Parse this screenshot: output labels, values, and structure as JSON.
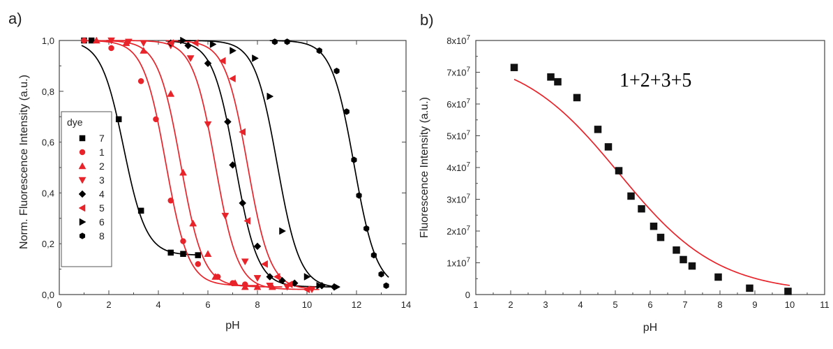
{
  "chart_data": [
    {
      "type": "scatter",
      "panel_label": "a)",
      "xlabel": "pH",
      "ylabel": "Norm. Fluorescence Intensity (a.u.)",
      "xlim": [
        0,
        14
      ],
      "ylim": [
        0,
        1.0
      ],
      "xticks": [
        "0",
        "2",
        "4",
        "6",
        "8",
        "10",
        "12",
        "14"
      ],
      "yticks": [
        "0,0",
        "0,2",
        "0,4",
        "0,6",
        "0,8",
        "1,0"
      ],
      "grid": false,
      "legend": {
        "title": "dye",
        "placement": "left-middle"
      },
      "series": [
        {
          "name": "7",
          "marker": "square",
          "color": "#000000",
          "x": [
            1.0,
            1.3,
            2.4,
            3.3,
            4.5,
            5.0,
            5.6
          ],
          "y": [
            1.0,
            1.0,
            0.69,
            0.33,
            0.165,
            0.16,
            0.155
          ],
          "fit": {
            "pKa": 2.6,
            "slope": 2.2,
            "top": 1.0,
            "bottom": 0.155,
            "x": [
              0.9,
              5.7
            ]
          }
        },
        {
          "name": "1",
          "marker": "circle",
          "color": "#e8232a",
          "x": [
            1.0,
            2.1,
            3.3,
            3.9,
            4.5,
            5.0,
            5.6,
            6.4,
            7.0,
            7.5
          ],
          "y": [
            1.0,
            0.97,
            0.84,
            0.69,
            0.37,
            0.21,
            0.12,
            0.07,
            0.045,
            0.04
          ],
          "fit": {
            "pKa": 4.3,
            "slope": 2.2,
            "top": 1.0,
            "bottom": 0.035,
            "x": [
              0.9,
              8.0
            ]
          }
        },
        {
          "name": "2",
          "marker": "triangle-up",
          "color": "#e8232a",
          "x": [
            1.5,
            2.7,
            3.4,
            4.5,
            5.0,
            5.4,
            6.0,
            6.3,
            7.1,
            7.5,
            8.0,
            8.6
          ],
          "y": [
            1.0,
            0.99,
            0.96,
            0.79,
            0.48,
            0.28,
            0.16,
            0.07,
            0.045,
            0.03,
            0.03,
            0.03
          ],
          "fit": {
            "pKa": 4.9,
            "slope": 2.2,
            "top": 1.0,
            "bottom": 0.03,
            "x": [
              1.3,
              9.0
            ]
          }
        },
        {
          "name": "3",
          "marker": "triangle-down",
          "color": "#e8232a",
          "x": [
            2.1,
            2.8,
            3.4,
            4.5,
            5.3,
            6.0,
            6.7,
            7.5,
            8.0,
            8.5,
            9.2,
            10.2
          ],
          "y": [
            1.0,
            0.995,
            0.99,
            0.98,
            0.93,
            0.67,
            0.31,
            0.13,
            0.065,
            0.035,
            0.03,
            0.02
          ],
          "fit": {
            "pKa": 6.3,
            "slope": 2.2,
            "top": 1.0,
            "bottom": 0.02,
            "x": [
              1.9,
              10.5
            ]
          }
        },
        {
          "name": "4",
          "marker": "diamond",
          "color": "#000000",
          "x": [
            4.5,
            5.2,
            6.0,
            6.8,
            7.0,
            7.4,
            8.0,
            8.5,
            9.0,
            9.5,
            10.6,
            11.1
          ],
          "y": [
            0.99,
            0.98,
            0.91,
            0.68,
            0.51,
            0.36,
            0.19,
            0.07,
            0.055,
            0.045,
            0.035,
            0.03
          ],
          "fit": {
            "pKa": 7.1,
            "slope": 2.2,
            "top": 1.0,
            "bottom": 0.03,
            "x": [
              4.3,
              11.3
            ]
          }
        },
        {
          "name": "5",
          "marker": "triangle-left",
          "color": "#e8232a",
          "x": [
            4.5,
            5.5,
            6.6,
            7.0,
            7.4,
            7.6,
            8.3,
            8.8,
            9.3,
            10.0
          ],
          "y": [
            0.99,
            0.99,
            0.92,
            0.85,
            0.64,
            0.29,
            0.12,
            0.07,
            0.04,
            0.02
          ],
          "fit": {
            "pKa": 7.6,
            "slope": 2.2,
            "top": 1.0,
            "bottom": 0.02,
            "x": [
              4.3,
              10.3
            ]
          }
        },
        {
          "name": "6",
          "marker": "triangle-right",
          "color": "#000000",
          "x": [
            5.0,
            6.2,
            7.0,
            7.9,
            8.5,
            9.0,
            10.0,
            10.5,
            11.2
          ],
          "y": [
            1.0,
            0.985,
            0.96,
            0.93,
            0.78,
            0.25,
            0.07,
            0.035,
            0.03
          ],
          "fit": {
            "pKa": 8.8,
            "slope": 2.2,
            "top": 1.0,
            "bottom": 0.025,
            "x": [
              4.8,
              11.3
            ]
          }
        },
        {
          "name": "8",
          "marker": "hexagon",
          "color": "#000000",
          "x": [
            8.7,
            9.2,
            10.5,
            11.2,
            11.6,
            11.9,
            12.1,
            12.4,
            12.7,
            13.0,
            13.2
          ],
          "y": [
            0.995,
            0.995,
            0.96,
            0.88,
            0.72,
            0.53,
            0.39,
            0.26,
            0.155,
            0.08,
            0.035
          ],
          "fit": {
            "pKa": 11.9,
            "slope": 2.2,
            "top": 1.0,
            "bottom": 0.025,
            "x": [
              8.5,
              13.3
            ]
          }
        }
      ]
    },
    {
      "type": "scatter",
      "panel_label": "b)",
      "annotation": "1+2+3+5",
      "xlabel": "pH",
      "ylabel": "Fluorescence Intensity (a.u.)",
      "xlim": [
        1,
        11
      ],
      "ylim": [
        0,
        80000000
      ],
      "xticks": [
        "1",
        "2",
        "3",
        "4",
        "5",
        "6",
        "7",
        "8",
        "9",
        "10",
        "11"
      ],
      "yticks": [
        {
          "mant": "0",
          "exp": ""
        },
        {
          "mant": "1x10",
          "exp": "7"
        },
        {
          "mant": "2x10",
          "exp": "7"
        },
        {
          "mant": "3x10",
          "exp": "7"
        },
        {
          "mant": "4x10",
          "exp": "7"
        },
        {
          "mant": "5x10",
          "exp": "7"
        },
        {
          "mant": "6x10",
          "exp": "7"
        },
        {
          "mant": "7x10",
          "exp": "7"
        },
        {
          "mant": "8x10",
          "exp": "7"
        }
      ],
      "grid": false,
      "series": [
        {
          "marker": "square",
          "color": "#111111",
          "x": [
            2.1,
            3.15,
            3.35,
            3.9,
            4.5,
            4.8,
            5.1,
            5.45,
            5.75,
            6.1,
            6.3,
            6.75,
            6.95,
            7.2,
            7.95,
            8.85,
            9.95
          ],
          "y": [
            71500000,
            68500000,
            67000000,
            62000000,
            52000000,
            46500000,
            39000000,
            31000000,
            27000000,
            21500000,
            18000000,
            14000000,
            11000000,
            9000000,
            5500000,
            2000000,
            1000000
          ],
          "fit": {
            "color": "#e8232a",
            "pKa": 5.1,
            "slope": 0.7,
            "top": 76000000,
            "bottom": 500000,
            "x": [
              2.1,
              10.0
            ]
          }
        }
      ]
    }
  ]
}
